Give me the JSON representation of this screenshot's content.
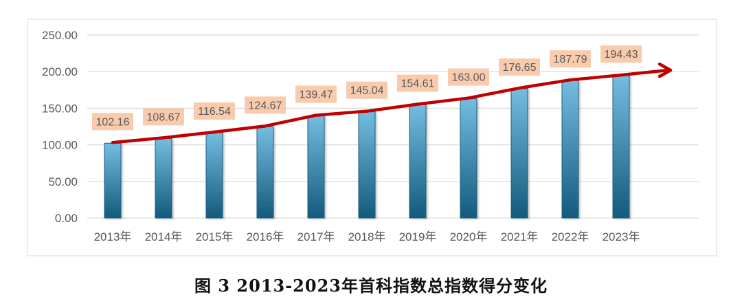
{
  "chart_data": {
    "type": "bar",
    "title": "",
    "xlabel": "",
    "ylabel": "",
    "ylim": [
      0,
      250
    ],
    "yticks": [
      "0.00",
      "50.00",
      "100.00",
      "150.00",
      "200.00",
      "250.00"
    ],
    "categories": [
      "2013年",
      "2014年",
      "2015年",
      "2016年",
      "2017年",
      "2018年",
      "2019年",
      "2020年",
      "2021年",
      "2022年",
      "2023年"
    ],
    "values": [
      102.16,
      108.67,
      116.54,
      124.67,
      139.47,
      145.04,
      154.61,
      163.0,
      176.65,
      187.79,
      194.43
    ],
    "data_labels": [
      "102.16",
      "108.67",
      "116.54",
      "124.67",
      "139.47",
      "145.04",
      "154.61",
      "163.00",
      "176.65",
      "187.79",
      "194.43"
    ],
    "grid": true,
    "trend_line": "red arrow following bar tops",
    "colors": {
      "bar_top": "#74bde0",
      "bar_bottom": "#135a7c",
      "line": "#c00000",
      "label_bg": "#f8cbad",
      "grid": "#d9d9d9",
      "axis_text": "#595959"
    }
  },
  "caption": "图 3 2013-2023年首科指数总指数得分变化"
}
